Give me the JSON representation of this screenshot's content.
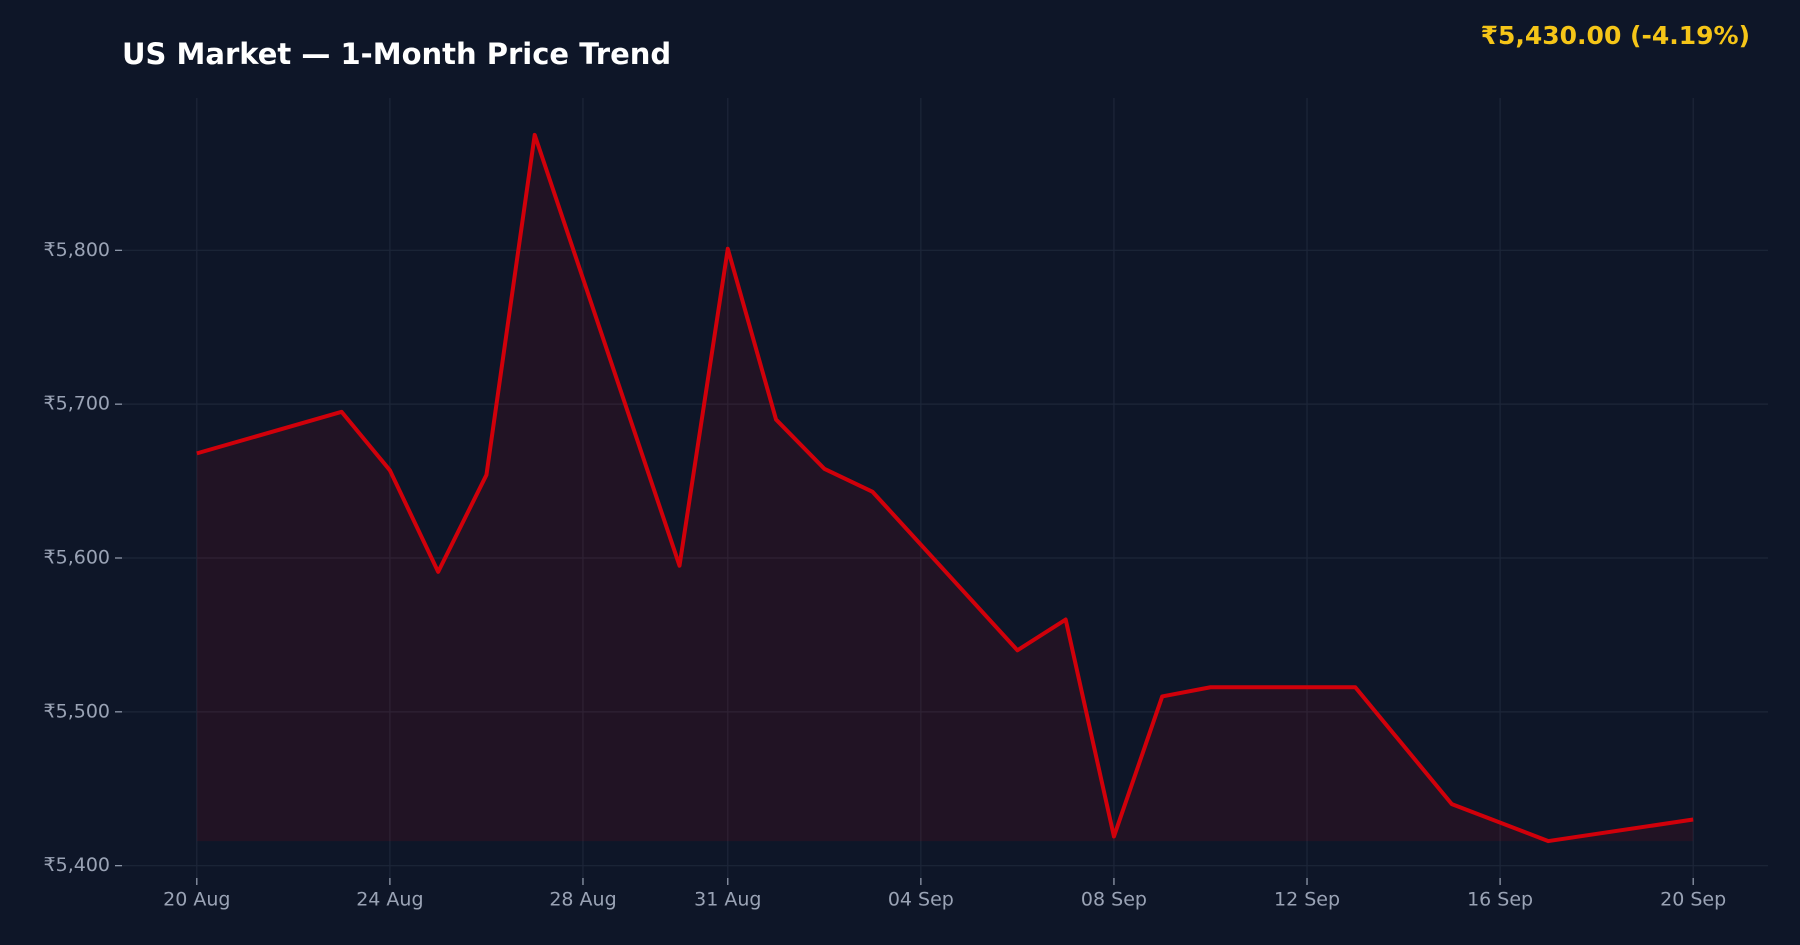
{
  "chart_data": {
    "type": "line",
    "title": "US Market — 1-Month Price Trend",
    "price_label": "₹5,430.00  (-4.19%)",
    "x": [
      "20 Aug",
      "23 Aug",
      "24 Aug",
      "25 Aug",
      "26 Aug",
      "27 Aug",
      "30 Aug",
      "31 Aug",
      "01 Sep",
      "02 Sep",
      "03 Sep",
      "06 Sep",
      "07 Sep",
      "08 Sep",
      "09 Sep",
      "10 Sep",
      "13 Sep",
      "15 Sep",
      "17 Sep",
      "20 Sep"
    ],
    "series": [
      {
        "color": "#d0000a",
        "values": [
          5668,
          5695,
          5657,
          5591,
          5654,
          5875,
          5595,
          5801,
          5690,
          5658,
          5643,
          5540,
          5560,
          5419,
          5510,
          5516,
          5516,
          5440,
          5416,
          5430
        ]
      }
    ],
    "xticks": [
      "20 Aug",
      "24 Aug",
      "28 Aug",
      "31 Aug",
      "04 Sep",
      "08 Sep",
      "12 Sep",
      "16 Sep",
      "20 Sep"
    ],
    "ylim": [
      5392,
      5899
    ],
    "yticks": [
      {
        "value": 5400,
        "label": "₹5,400"
      },
      {
        "value": 5500,
        "label": "₹5,500"
      },
      {
        "value": 5600,
        "label": "₹5,600"
      },
      {
        "value": 5700,
        "label": "₹5,700"
      },
      {
        "value": 5800,
        "label": "₹5,800"
      }
    ],
    "grid": true,
    "fill": true
  }
}
